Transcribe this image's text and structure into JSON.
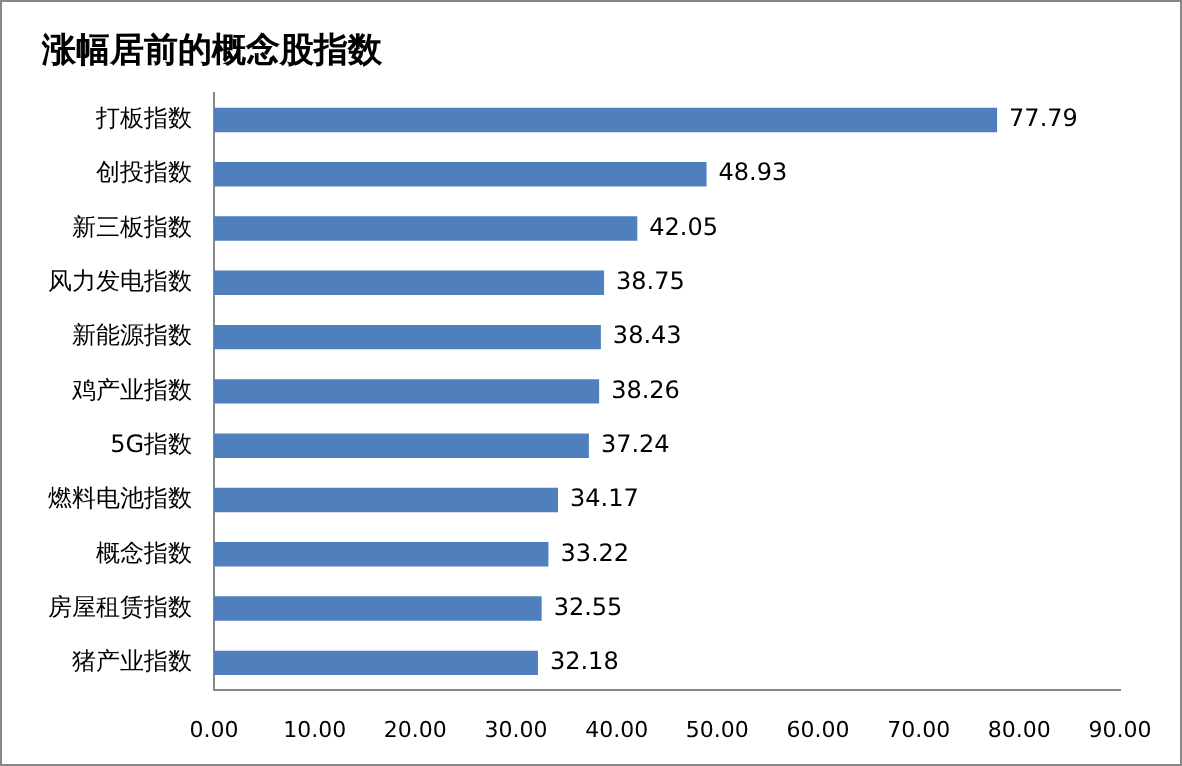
{
  "chart_data": {
    "type": "bar",
    "orientation": "horizontal",
    "title": "涨幅居前的概念股指数",
    "categories": [
      "打板指数",
      "创投指数",
      "新三板指数",
      "风力发电指数",
      "新能源指数",
      "鸡产业指数",
      "5G指数",
      "燃料电池指数",
      "概念指数",
      "房屋租赁指数",
      "猪产业指数"
    ],
    "values": [
      77.79,
      48.93,
      42.05,
      38.75,
      38.43,
      38.26,
      37.24,
      34.17,
      33.22,
      32.55,
      32.18
    ],
    "color": "#4f7fbd",
    "xlim": [
      0,
      90
    ],
    "xticks": [
      {
        "value": 0,
        "label": "0.00"
      },
      {
        "value": 10,
        "label": "10.00"
      },
      {
        "value": 20,
        "label": "20.00"
      },
      {
        "value": 30,
        "label": "30.00"
      },
      {
        "value": 40,
        "label": "40.00"
      },
      {
        "value": 50,
        "label": "50.00"
      },
      {
        "value": 60,
        "label": "60.00"
      },
      {
        "value": 70,
        "label": "70.00"
      },
      {
        "value": 80,
        "label": "80.00"
      },
      {
        "value": 90,
        "label": "90.00"
      }
    ],
    "data_labels": true,
    "grid": false,
    "legend": false
  }
}
